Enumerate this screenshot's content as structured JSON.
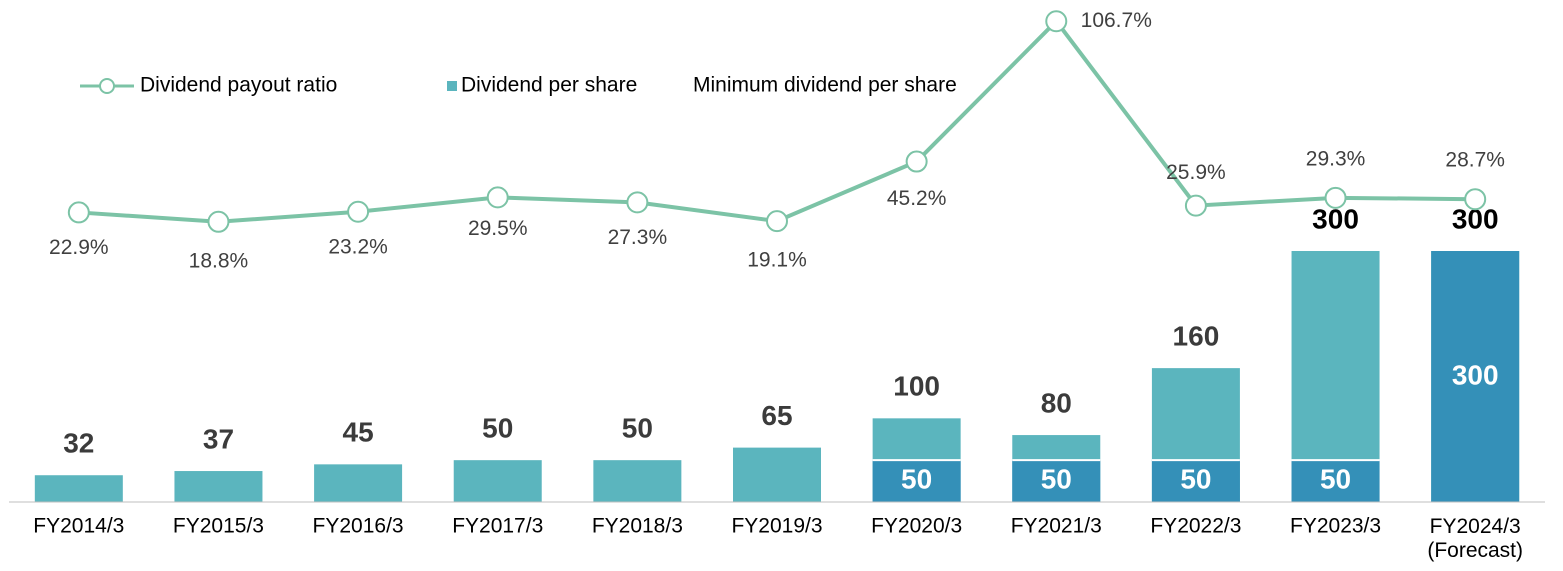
{
  "chart_data": {
    "type": "bar",
    "categories": [
      "FY2014/3",
      "FY2015/3",
      "FY2016/3",
      "FY2017/3",
      "FY2018/3",
      "FY2019/3",
      "FY2020/3",
      "FY2021/3",
      "FY2022/3",
      "FY2023/3",
      "FY2024/3\n(Forecast)"
    ],
    "series": [
      {
        "name": "Dividend payout ratio",
        "type": "line",
        "axis": "y2",
        "color": "#7cc3a6",
        "values": [
          22.9,
          18.8,
          23.2,
          29.5,
          27.3,
          19.1,
          45.2,
          106.7,
          25.9,
          29.3,
          28.7
        ],
        "value_labels": [
          "22.9%",
          "18.8%",
          "23.2%",
          "29.5%",
          "27.3%",
          "19.1%",
          "45.2%",
          "106.7%",
          "25.9%",
          "29.3%",
          "28.7%"
        ]
      },
      {
        "name": "Dividend per share",
        "type": "bar",
        "color": "#5bb5be",
        "values": [
          32,
          37,
          45,
          50,
          50,
          65,
          100,
          80,
          160,
          300,
          300
        ]
      },
      {
        "name": "Minimum dividend per share",
        "type": "bar",
        "color": "#3490b8",
        "values": [
          null,
          null,
          null,
          null,
          null,
          null,
          50,
          50,
          50,
          50,
          300
        ]
      }
    ],
    "ylim": [
      0,
      600
    ],
    "y2lim": [
      -104,
      116
    ],
    "legend": "top-left"
  }
}
